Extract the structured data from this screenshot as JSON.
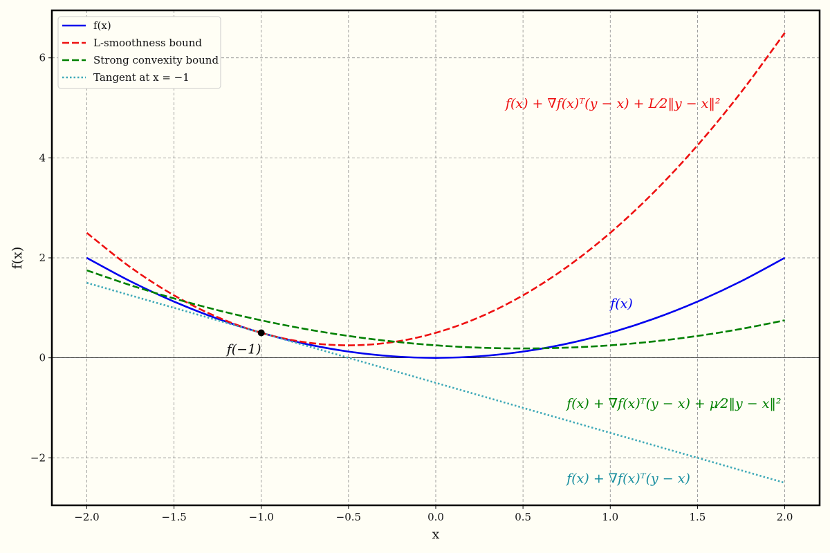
{
  "chart_data": {
    "type": "line",
    "xlabel": "x",
    "ylabel": "f(x)",
    "xlim": [
      -2.2,
      2.2
    ],
    "ylim": [
      -2.95,
      6.95
    ],
    "xticks": [
      -2.0,
      -1.5,
      -1.0,
      -0.5,
      0.0,
      0.5,
      1.0,
      1.5,
      2.0
    ],
    "xtick_labels": [
      "−2.0",
      "−1.5",
      "−1.0",
      "−0.5",
      "0.0",
      "0.5",
      "1.0",
      "1.5",
      "2.0"
    ],
    "yticks": [
      -2,
      0,
      2,
      4,
      6
    ],
    "ytick_labels": [
      "−2",
      "0",
      "2",
      "4",
      "6"
    ],
    "grid": true,
    "legend_position": "top-left",
    "x": [
      -2.0,
      -1.75,
      -1.5,
      -1.25,
      -1.0,
      -0.75,
      -0.5,
      -0.25,
      0.0,
      0.25,
      0.5,
      0.75,
      1.0,
      1.25,
      1.5,
      1.75,
      2.0
    ],
    "series": [
      {
        "name": "f(x)",
        "color": "#0000ee",
        "style": "solid",
        "values": [
          2.0,
          1.53125,
          1.125,
          0.78125,
          0.5,
          0.28125,
          0.125,
          0.03125,
          0.0,
          0.03125,
          0.125,
          0.28125,
          0.5,
          0.78125,
          1.125,
          1.53125,
          2.0
        ]
      },
      {
        "name": "L-smoothness bound",
        "color": "#ee1111",
        "style": "dashed",
        "values": [
          2.5,
          1.8125,
          1.25,
          0.8125,
          0.5,
          0.3125,
          0.25,
          0.3125,
          0.5,
          0.8125,
          1.25,
          1.8125,
          2.5,
          3.3125,
          4.25,
          5.3125,
          6.5
        ]
      },
      {
        "name": "Strong convexity bound",
        "color": "#008000",
        "style": "dashed",
        "values": [
          1.75,
          1.453125,
          1.1875,
          0.953125,
          0.75,
          0.578125,
          0.4375,
          0.328125,
          0.25,
          0.203125,
          0.1875,
          0.203125,
          0.25,
          0.328125,
          0.4375,
          0.578125,
          0.75
        ]
      },
      {
        "name": "Tangent at x = −1",
        "color": "#3fa9b8",
        "style": "dotted",
        "values": [
          1.5,
          1.25,
          1.0,
          0.75,
          0.5,
          0.25,
          0.0,
          -0.25,
          -0.5,
          -0.75,
          -1.0,
          -1.25,
          -1.5,
          -1.75,
          -2.0,
          -2.25,
          -2.5
        ]
      }
    ],
    "point": {
      "x": -1.0,
      "y": 0.5,
      "label": "f(−1)"
    },
    "annotations": [
      {
        "text": "f(x) + ∇f(x)ᵀ(y − x) + L⁄2‖y − x‖²",
        "x": 0.4,
        "y": 5.0,
        "color": "#ee1111"
      },
      {
        "text": "f(x)",
        "x": 1.0,
        "y": 1.0,
        "color": "#0000ee"
      },
      {
        "text": "f(x) + ∇f(x)ᵀ(y − x) + μ⁄2‖y − x‖²",
        "x": 0.75,
        "y": -1.0,
        "color": "#008000"
      },
      {
        "text": "f(x) + ∇f(x)ᵀ(y − x)",
        "x": 0.75,
        "y": -2.5,
        "color": "#1a8fa0"
      }
    ],
    "legend": [
      "f(x)",
      "L-smoothness bound",
      "Strong convexity bound",
      "Tangent at x = −1"
    ]
  }
}
